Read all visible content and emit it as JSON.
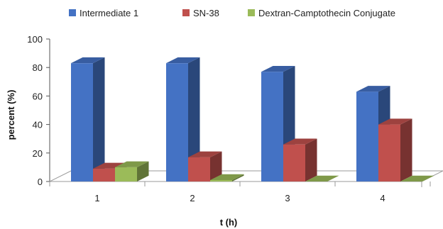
{
  "chart_data": {
    "type": "bar",
    "categories": [
      "1",
      "2",
      "3",
      "4"
    ],
    "series": [
      {
        "name": "Intermediate 1",
        "values": [
          83,
          83,
          77,
          63
        ],
        "color": "#4472C4"
      },
      {
        "name": "SN-38",
        "values": [
          9,
          17,
          26,
          40
        ],
        "color": "#C0504D"
      },
      {
        "name": "Dextran-Camptothecin Conjugate",
        "values": [
          10,
          1,
          0,
          0
        ],
        "color": "#9BBB59"
      }
    ],
    "xlabel": "t (h)",
    "ylabel": "percent (%)",
    "ylim": [
      0,
      100
    ],
    "yticks": [
      0,
      20,
      40,
      60,
      80,
      100
    ],
    "legend": "top",
    "style": "3d-clustered-column",
    "grid": false
  }
}
